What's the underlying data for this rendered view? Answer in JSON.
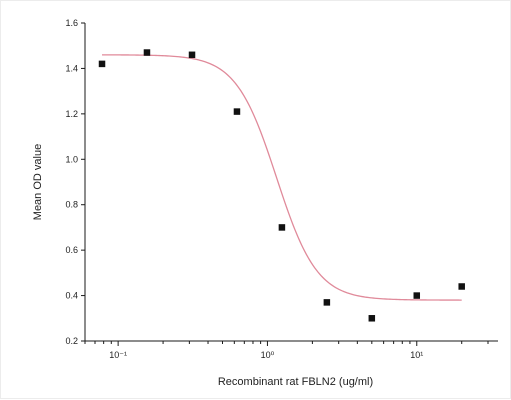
{
  "chart_data": {
    "type": "scatter",
    "title": "",
    "xlabel": "Recombinant rat FBLN2 (ug/ml)",
    "ylabel": "Mean OD value",
    "x_scale": "log",
    "xlim": [
      0.06,
      35
    ],
    "ylim": [
      0.2,
      1.6
    ],
    "grid": false,
    "legend": "none",
    "y_ticks": [
      "0.2",
      "0.4",
      "0.6",
      "0.8",
      "1.0",
      "1.2",
      "1.4",
      "1.6"
    ],
    "x_ticks": [
      {
        "value": 0.1,
        "label": "10⁻¹"
      },
      {
        "value": 1,
        "label": "10⁰"
      },
      {
        "value": 10,
        "label": "10¹"
      }
    ],
    "series": [
      {
        "type": "scatter",
        "x": [
          0.078,
          0.156,
          0.3125,
          0.625,
          1.25,
          2.5,
          5,
          10,
          20
        ],
        "y": [
          1.42,
          1.47,
          1.46,
          1.21,
          0.7,
          0.37,
          0.3,
          0.4,
          0.44
        ]
      }
    ],
    "fit_curve": {
      "model": "4PL",
      "top": 1.46,
      "bottom": 0.38,
      "ec50": 1.15,
      "hill": 3.2
    },
    "colors": {
      "points": "#111111",
      "fit_curve": "#e08a9a",
      "axes": "#1a1a1a"
    }
  }
}
